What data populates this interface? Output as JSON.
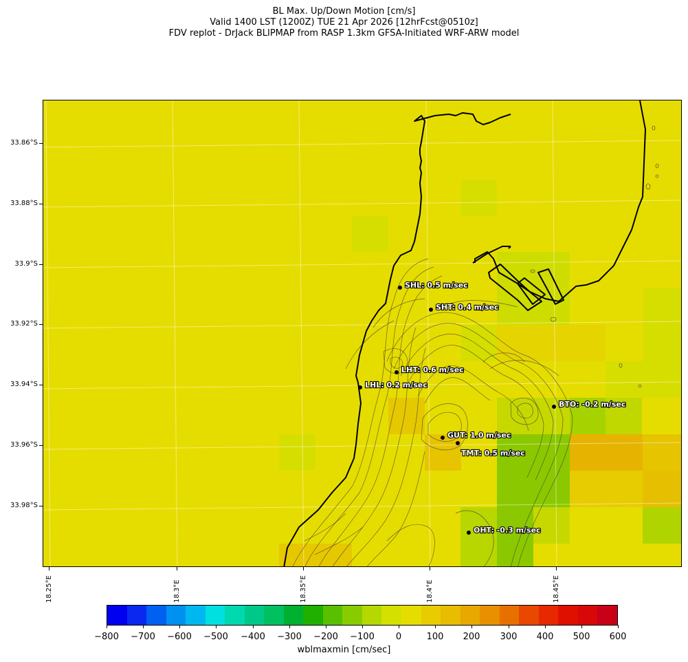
{
  "title": {
    "line1": "BL Max. Up/Down Motion [cm/s]",
    "line2": "Valid 1400 LST (1200Z) TUE 21 Apr 2026 [12hrFcst@0510z]",
    "line3": "FDV replot - DrJack BLIPMAP from RASP 1.3km GFSA-Initiated WRF-ARW model"
  },
  "axes": {
    "lat_labels": [
      "33.86°S",
      "33.88°S",
      "33.9°S",
      "33.92°S",
      "33.94°S",
      "33.96°S",
      "33.98°S"
    ],
    "lon_labels": [
      "18.25°E",
      "18.3°E",
      "18.35°E",
      "18.4°E",
      "18.45°E"
    ]
  },
  "stations": [
    {
      "id": "SHL",
      "text": "SHL: 0.5 m/sec",
      "value_ms": 0.5
    },
    {
      "id": "SHT",
      "text": "SHT: 0.4 m/sec",
      "value_ms": 0.4
    },
    {
      "id": "LHT",
      "text": "LHT: 0.6 m/sec",
      "value_ms": 0.6
    },
    {
      "id": "LHL",
      "text": "LHL: 0.2 m/sec",
      "value_ms": 0.2
    },
    {
      "id": "BTO",
      "text": "BTO: -0.2 m/sec",
      "value_ms": -0.2
    },
    {
      "id": "GUT",
      "text": "GUT: 1.0 m/sec",
      "value_ms": 1.0
    },
    {
      "id": "TMT",
      "text": "TMT: 0.5 m/sec",
      "value_ms": 0.5
    },
    {
      "id": "OHT",
      "text": "OHT: -0.3 m/sec",
      "value_ms": -0.3
    }
  ],
  "colorbar": {
    "label": "wblmaxmin [cm/sec]",
    "tick_labels": [
      "−800",
      "−700",
      "−600",
      "−500",
      "−400",
      "−300",
      "−200",
      "−100",
      "0",
      "100",
      "200",
      "300",
      "400",
      "500",
      "600"
    ],
    "colors": [
      "#0000f0",
      "#0a28f0",
      "#0060f0",
      "#0090f0",
      "#00b8f0",
      "#00e0e0",
      "#00d8b0",
      "#00c888",
      "#00c060",
      "#00b030",
      "#20b000",
      "#58c000",
      "#88cc00",
      "#b4d800",
      "#d4e000",
      "#e6dd00",
      "#e8cc00",
      "#e8bc00",
      "#e8a800",
      "#e89000",
      "#e87000",
      "#e84800",
      "#e82800",
      "#e01000",
      "#d80808",
      "#c80018"
    ]
  },
  "colors": {
    "background_yellow": "#e6dd00",
    "contour": "#333333",
    "coastline": "#000000"
  }
}
